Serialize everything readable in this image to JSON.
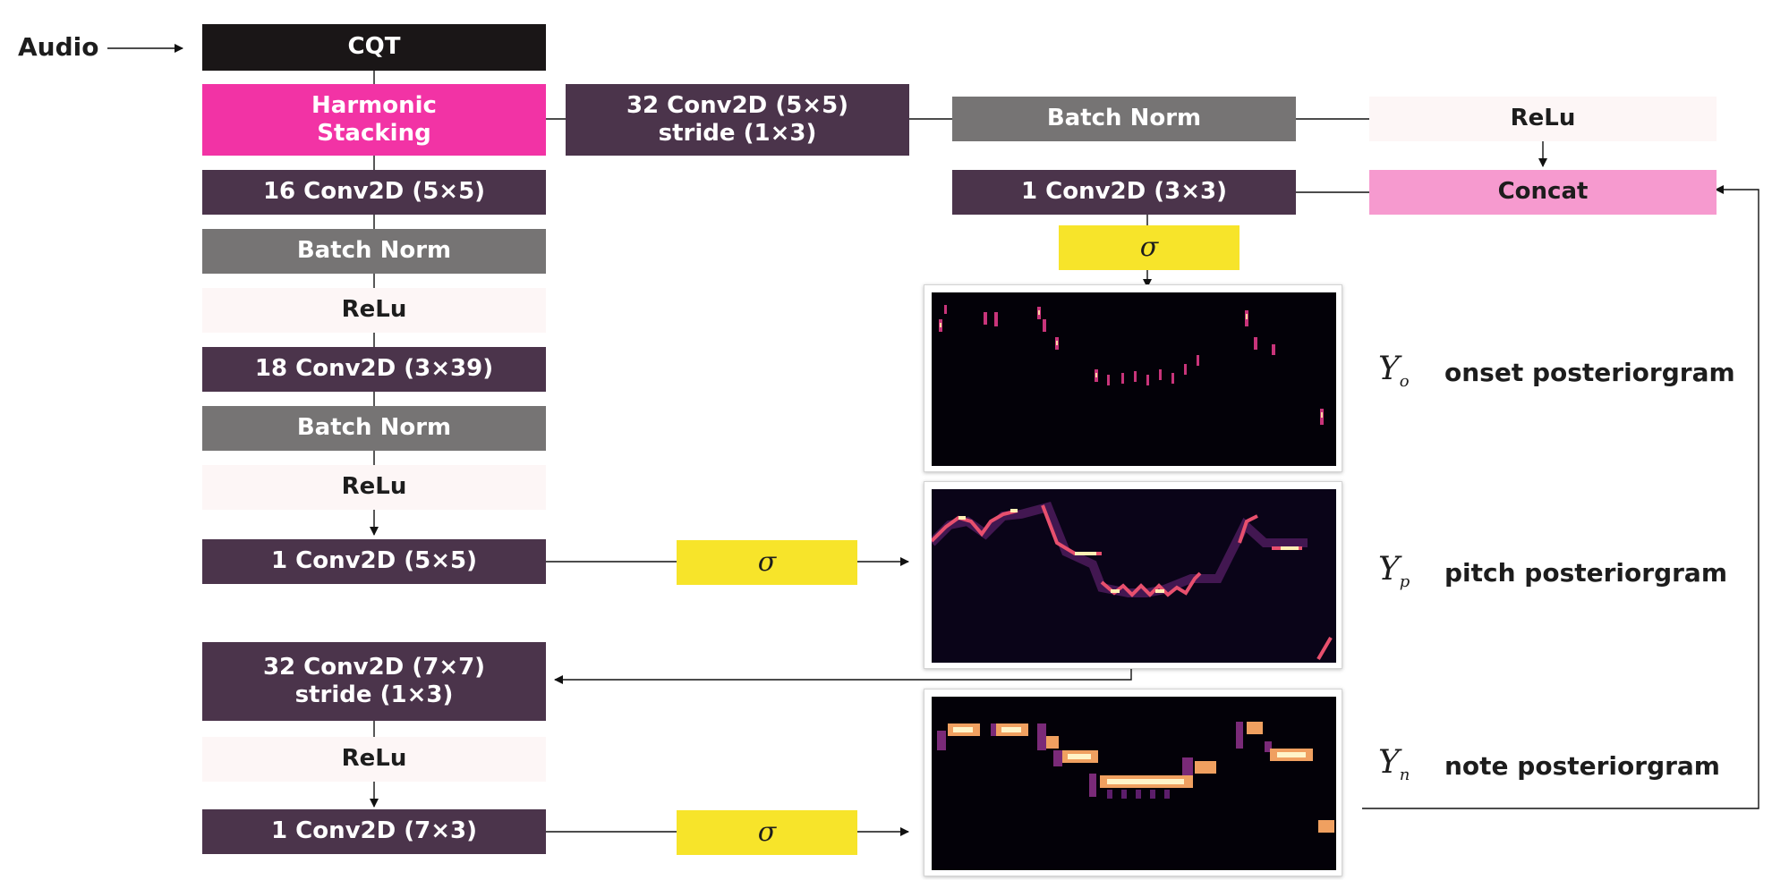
{
  "input_label": "Audio",
  "blocks": {
    "cqt": "CQT",
    "harmonic_stacking": "Harmonic\nStacking",
    "conv16": "16 Conv2D (5×5)",
    "bn1": "Batch Norm",
    "relu1": "ReLu",
    "conv18": "18 Conv2D (3×39)",
    "bn2": "Batch Norm",
    "relu2": "ReLu",
    "conv1_pitch": "1 Conv2D (5×5)",
    "conv32_77": "32 Conv2D (7×7)\nstride (1×3)",
    "relu3": "ReLu",
    "conv1_note": "1 Conv2D (7×3)",
    "conv32_55": "32 Conv2D (5×5)\nstride (1×3)",
    "bn_top": "Batch Norm",
    "relu_top": "ReLu",
    "conv1_onset": "1 Conv2D (3×3)",
    "concat": "Concat"
  },
  "sigma": "σ",
  "outputs": {
    "onset": {
      "symbol": "Y",
      "sub": "o",
      "label": "onset posteriorgram"
    },
    "pitch": {
      "symbol": "Y",
      "sub": "p",
      "label": "pitch posteriorgram"
    },
    "note": {
      "symbol": "Y",
      "sub": "n",
      "label": "note posteriorgram"
    }
  },
  "colors": {
    "cqt": "#1a1617",
    "conv": "#4b344b",
    "batch_norm": "#767474",
    "relu": "#fdf6f6",
    "harmonic_stacking": "#f233a5",
    "concat": "#f69acf",
    "sigmoid": "#f7e42a",
    "heatmap_background": "#030108",
    "heatmap_hot": "#fcf6b4"
  }
}
